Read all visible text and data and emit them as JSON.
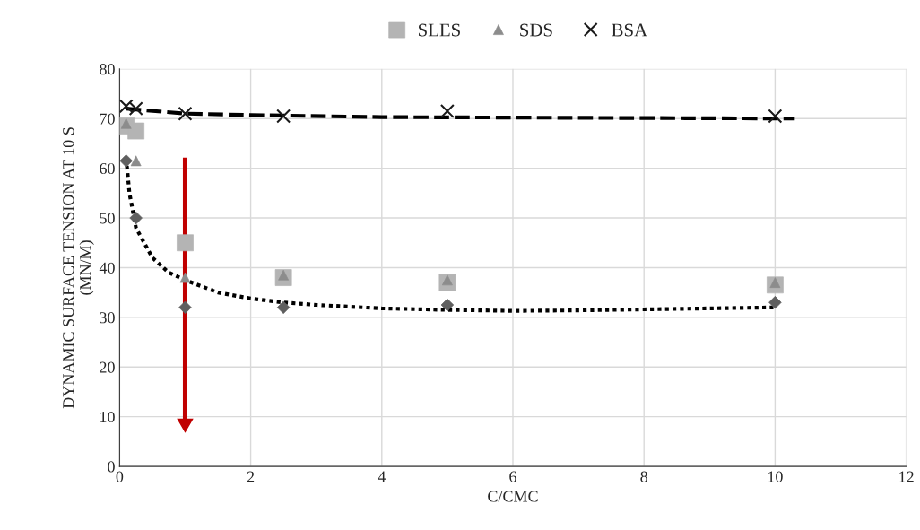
{
  "chart_data": {
    "type": "scatter",
    "xlabel": "C/CMC",
    "ylabel": "DYNAMIC SURFACE TENSION AT 10 S\n(MN/M)",
    "xlim": [
      0,
      12
    ],
    "xticks": [
      0,
      2,
      4,
      6,
      8,
      10,
      12
    ],
    "ylim": [
      0,
      80
    ],
    "yticks": [
      0,
      10,
      20,
      30,
      40,
      50,
      60,
      70,
      80
    ],
    "grid": true,
    "legend": "top",
    "series": [
      {
        "color": "#5f5f5f",
        "marker": "diamond",
        "x": [
          0.1,
          0.25,
          1,
          2.5,
          5,
          10
        ],
        "values": [
          61.5,
          50,
          32,
          32,
          32.5,
          33
        ]
      },
      {
        "name": "SLES",
        "color": "#b4b4b4",
        "marker": "square",
        "x": [
          0.1,
          0.25,
          1,
          2.5,
          5,
          10
        ],
        "values": [
          68.5,
          67.5,
          45,
          38,
          37,
          36.5
        ]
      },
      {
        "name": "SDS",
        "color": "#8c8c8c",
        "marker": "triangle",
        "x": [
          0.1,
          0.25,
          1,
          2.5,
          5,
          10
        ],
        "values": [
          69,
          61.5,
          38,
          38.5,
          37.5,
          37
        ]
      },
      {
        "name": "BSA",
        "color": "#1a1a1a",
        "marker": "cross",
        "x": [
          0.1,
          0.25,
          1,
          2.5,
          5,
          10
        ],
        "values": [
          72.5,
          72,
          71,
          70.5,
          71.5,
          70.5
        ]
      },
      {
        "type": "line",
        "color": "#000000",
        "line_style": "dotted",
        "marker": "none",
        "x": [
          0.1,
          0.15,
          0.25,
          0.5,
          0.75,
          1,
          1.5,
          2,
          2.5,
          3,
          4,
          5,
          6,
          7,
          8,
          9,
          10
        ],
        "values": [
          62,
          55,
          48,
          42,
          39,
          37.5,
          35,
          33.8,
          33,
          32.5,
          31.8,
          31.5,
          31.3,
          31.4,
          31.6,
          31.8,
          32
        ]
      },
      {
        "type": "line",
        "color": "#000000",
        "line_style": "dashed",
        "marker": "none",
        "x": [
          0.1,
          1,
          2,
          4,
          6,
          10.3
        ],
        "values": [
          72,
          71,
          70.7,
          70.3,
          70.2,
          70
        ]
      }
    ]
  }
}
